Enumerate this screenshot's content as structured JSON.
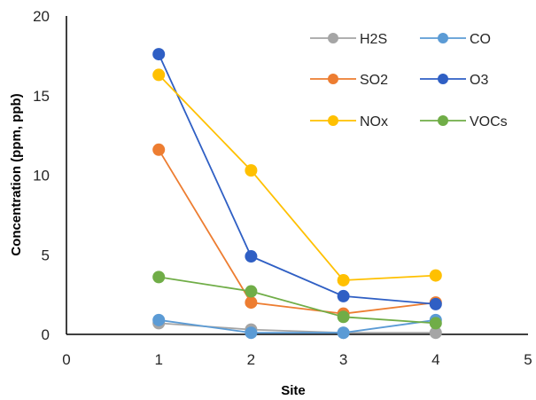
{
  "chart_data": {
    "type": "scatter",
    "xlabel": "Site",
    "ylabel": "Concentration (ppm, ppb)",
    "xlim": [
      0,
      5
    ],
    "ylim": [
      0,
      20
    ],
    "xticks": [
      0,
      1,
      2,
      3,
      4,
      5
    ],
    "yticks": [
      0,
      5,
      10,
      15,
      20
    ],
    "grid": false,
    "legend_position": "top-right",
    "series": [
      {
        "name": "H2S",
        "color": "#a5a5a5",
        "x": [
          1,
          2,
          3,
          4
        ],
        "y": [
          0.7,
          0.3,
          0.1,
          0.1
        ]
      },
      {
        "name": "CO",
        "color": "#5b9bd5",
        "x": [
          1,
          2,
          3,
          4
        ],
        "y": [
          0.9,
          0.1,
          0.1,
          0.9
        ]
      },
      {
        "name": "SO2",
        "color": "#ed7d31",
        "x": [
          1,
          2,
          3,
          4
        ],
        "y": [
          11.6,
          2.0,
          1.3,
          2.0
        ]
      },
      {
        "name": "O3",
        "color": "#2f5fc4",
        "x": [
          1,
          2,
          3,
          4
        ],
        "y": [
          17.6,
          4.9,
          2.4,
          1.9
        ]
      },
      {
        "name": "NOx",
        "color": "#ffc000",
        "x": [
          1,
          2,
          3,
          4
        ],
        "y": [
          16.3,
          10.3,
          3.4,
          3.7
        ]
      },
      {
        "name": "VOCs",
        "color": "#70ad47",
        "x": [
          1,
          2,
          3,
          4
        ],
        "y": [
          3.6,
          2.7,
          1.1,
          0.7
        ]
      }
    ]
  }
}
